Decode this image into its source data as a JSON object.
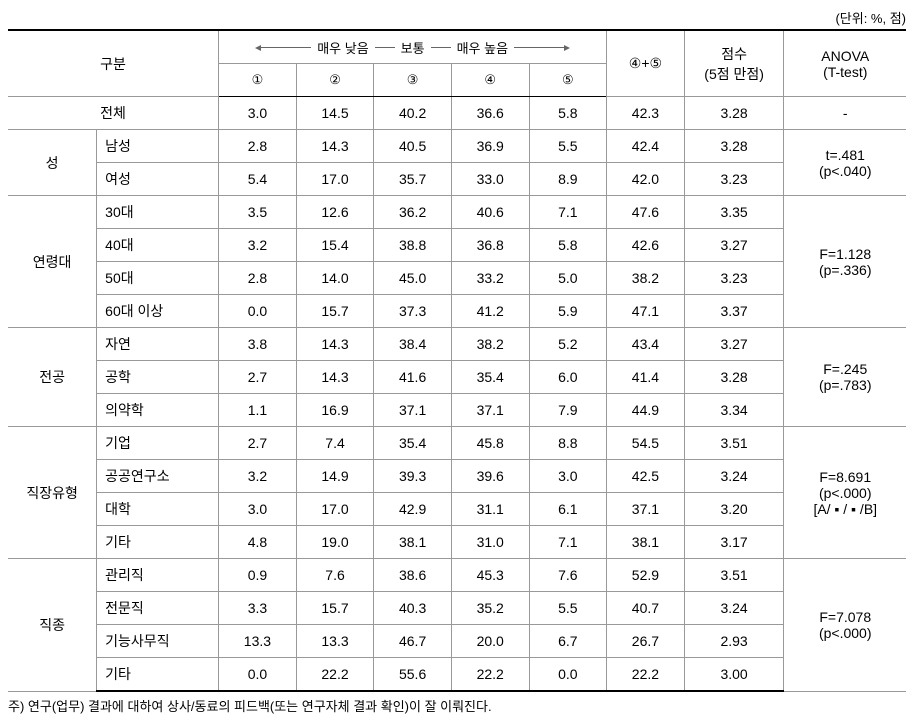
{
  "unit_label": "(단위: %, 점)",
  "header": {
    "category": "구분",
    "scale_low": "매우 낮음",
    "scale_mid": "보통",
    "scale_high": "매우 높음",
    "c1": "①",
    "c2": "②",
    "c3": "③",
    "c4": "④",
    "c5": "⑤",
    "sum45": "④+⑤",
    "score": "점수",
    "score_sub": "(5점 만점)",
    "anova": "ANOVA",
    "anova_sub": "(T-test)"
  },
  "groups": [
    {
      "name": "전체",
      "span_full": true,
      "rows": [
        {
          "label": "",
          "v": [
            "3.0",
            "14.5",
            "40.2",
            "36.6",
            "5.8"
          ],
          "sum": "42.3",
          "score": "3.28",
          "anova": "-"
        }
      ]
    },
    {
      "name": "성",
      "rows": [
        {
          "label": "남성",
          "v": [
            "2.8",
            "14.3",
            "40.5",
            "36.9",
            "5.5"
          ],
          "sum": "42.4",
          "score": "3.28"
        },
        {
          "label": "여성",
          "v": [
            "5.4",
            "17.0",
            "35.7",
            "33.0",
            "8.9"
          ],
          "sum": "42.0",
          "score": "3.23"
        }
      ],
      "anova": [
        "t=.481",
        "(p<.040)"
      ]
    },
    {
      "name": "연령대",
      "rows": [
        {
          "label": "30대",
          "v": [
            "3.5",
            "12.6",
            "36.2",
            "40.6",
            "7.1"
          ],
          "sum": "47.6",
          "score": "3.35"
        },
        {
          "label": "40대",
          "v": [
            "3.2",
            "15.4",
            "38.8",
            "36.8",
            "5.8"
          ],
          "sum": "42.6",
          "score": "3.27"
        },
        {
          "label": "50대",
          "v": [
            "2.8",
            "14.0",
            "45.0",
            "33.2",
            "5.0"
          ],
          "sum": "38.2",
          "score": "3.23"
        },
        {
          "label": "60대 이상",
          "v": [
            "0.0",
            "15.7",
            "37.3",
            "41.2",
            "5.9"
          ],
          "sum": "47.1",
          "score": "3.37"
        }
      ],
      "anova": [
        "F=1.128",
        "(p=.336)"
      ]
    },
    {
      "name": "전공",
      "rows": [
        {
          "label": "자연",
          "v": [
            "3.8",
            "14.3",
            "38.4",
            "38.2",
            "5.2"
          ],
          "sum": "43.4",
          "score": "3.27"
        },
        {
          "label": "공학",
          "v": [
            "2.7",
            "14.3",
            "41.6",
            "35.4",
            "6.0"
          ],
          "sum": "41.4",
          "score": "3.28"
        },
        {
          "label": "의약학",
          "v": [
            "1.1",
            "16.9",
            "37.1",
            "37.1",
            "7.9"
          ],
          "sum": "44.9",
          "score": "3.34"
        }
      ],
      "anova": [
        "F=.245",
        "(p=.783)"
      ]
    },
    {
      "name": "직장유형",
      "rows": [
        {
          "label": "기업",
          "v": [
            "2.7",
            "7.4",
            "35.4",
            "45.8",
            "8.8"
          ],
          "sum": "54.5",
          "score": "3.51"
        },
        {
          "label": "공공연구소",
          "v": [
            "3.2",
            "14.9",
            "39.3",
            "39.6",
            "3.0"
          ],
          "sum": "42.5",
          "score": "3.24"
        },
        {
          "label": "대학",
          "v": [
            "3.0",
            "17.0",
            "42.9",
            "31.1",
            "6.1"
          ],
          "sum": "37.1",
          "score": "3.20"
        },
        {
          "label": "기타",
          "v": [
            "4.8",
            "19.0",
            "38.1",
            "31.0",
            "7.1"
          ],
          "sum": "38.1",
          "score": "3.17"
        }
      ],
      "anova": [
        "F=8.691",
        "(p<.000)",
        "[A/ ▪ / ▪ /B]"
      ]
    },
    {
      "name": "직종",
      "rows": [
        {
          "label": "관리직",
          "v": [
            "0.9",
            "7.6",
            "38.6",
            "45.3",
            "7.6"
          ],
          "sum": "52.9",
          "score": "3.51"
        },
        {
          "label": "전문직",
          "v": [
            "3.3",
            "15.7",
            "40.3",
            "35.2",
            "5.5"
          ],
          "sum": "40.7",
          "score": "3.24"
        },
        {
          "label": "기능사무직",
          "v": [
            "13.3",
            "13.3",
            "46.7",
            "20.0",
            "6.7"
          ],
          "sum": "26.7",
          "score": "2.93"
        },
        {
          "label": "기타",
          "v": [
            "0.0",
            "22.2",
            "55.6",
            "22.2",
            "0.0"
          ],
          "sum": "22.2",
          "score": "3.00"
        }
      ],
      "anova": [
        "F=7.078",
        "(p<.000)"
      ]
    }
  ],
  "footnote": "주) 연구(업무) 결과에 대하여 상사/동료의 피드백(또는 연구자체 결과 확인)이 잘 이뤄진다.",
  "style": {
    "text_color": "#000000",
    "bg_color": "#ffffff",
    "border_color": "#999999",
    "thick_border_color": "#000000",
    "font_size_cell": 14,
    "font_size_small": 13
  }
}
